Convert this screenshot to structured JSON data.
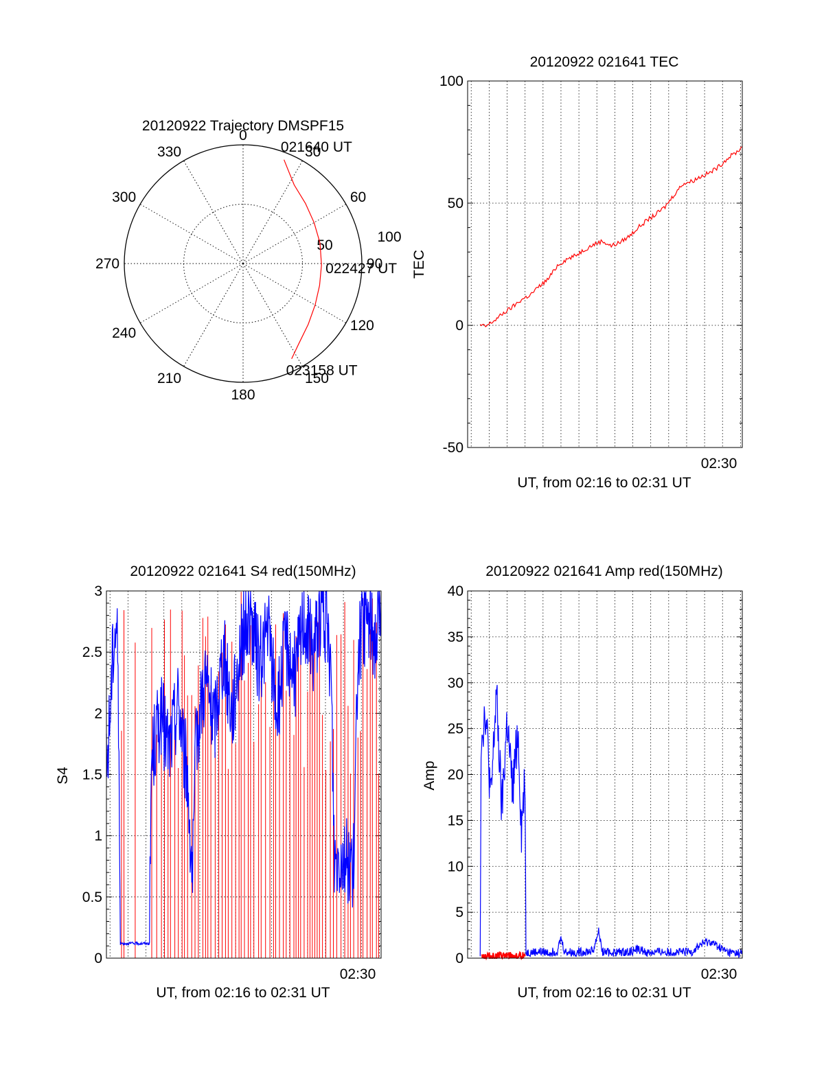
{
  "colors": {
    "red": "#ff0000",
    "blue": "#0000ff",
    "axis": "#000000",
    "grid": "#000000",
    "background": "#ffffff"
  },
  "chart_data": [
    {
      "id": "trajectory",
      "type": "polar",
      "title": "20120922 Trajectory DMSPF15",
      "azimuth_labels": [
        "0",
        "30",
        "60",
        "90",
        "120",
        "150",
        "180",
        "210",
        "240",
        "270",
        "300",
        "330"
      ],
      "radial_tick_labels": [
        "50",
        "100"
      ],
      "radial_range": [
        0,
        100
      ],
      "grid": true,
      "series": [
        {
          "color": "red",
          "points": [
            [
              21.5,
              94
            ],
            [
              26,
              87
            ],
            [
              33,
              79
            ],
            [
              46,
              73
            ],
            [
              60,
              69
            ],
            [
              75,
              67
            ],
            [
              91,
              66
            ],
            [
              106,
              67
            ],
            [
              120,
              70
            ],
            [
              133,
              75
            ],
            [
              145,
              82
            ],
            [
              153,
              90
            ]
          ]
        }
      ],
      "annotations": [
        {
          "text": "021640 UT",
          "az": 22,
          "r": 94
        },
        {
          "text": "022427 UT",
          "az": 91,
          "r": 66
        },
        {
          "text": "023158 UT",
          "az": 153,
          "r": 90
        }
      ]
    },
    {
      "id": "tec",
      "type": "line",
      "title": "20120922 021641 TEC",
      "xlabel": "UT, from 02:16 to 02:31 UT",
      "ylabel": "TEC",
      "xlim": [
        16.0,
        31.3
      ],
      "ylim": [
        -50,
        100
      ],
      "yticks": [
        "-50",
        "0",
        "50",
        "100"
      ],
      "xtick_labels": [
        {
          "x": 30.0,
          "label": "02:30"
        }
      ],
      "grid": true,
      "series": [
        {
          "color": "red",
          "points": [
            [
              16.7,
              0
            ],
            [
              17.0,
              -0.5
            ],
            [
              17.5,
              2
            ],
            [
              18.0,
              5
            ],
            [
              18.5,
              7.5
            ],
            [
              19.0,
              10.5
            ],
            [
              19.5,
              12.5
            ],
            [
              20.0,
              16
            ],
            [
              20.5,
              19
            ],
            [
              21.0,
              24.5
            ],
            [
              21.5,
              27
            ],
            [
              22.0,
              28.5
            ],
            [
              22.5,
              31
            ],
            [
              23.0,
              33
            ],
            [
              23.5,
              34.5
            ],
            [
              24.0,
              32.5
            ],
            [
              24.5,
              34
            ],
            [
              25.0,
              36.5
            ],
            [
              25.5,
              40
            ],
            [
              26.0,
              43
            ],
            [
              26.5,
              45.5
            ],
            [
              27.0,
              48.5
            ],
            [
              27.5,
              53.5
            ],
            [
              28.0,
              58
            ],
            [
              28.5,
              59
            ],
            [
              29.0,
              61
            ],
            [
              29.5,
              62.5
            ],
            [
              30.0,
              65
            ],
            [
              30.5,
              68.5
            ],
            [
              31.0,
              71
            ],
            [
              31.3,
              73
            ]
          ]
        }
      ]
    },
    {
      "id": "s4",
      "type": "line",
      "title": "20120922 021641 S4 red(150MHz)",
      "xlabel": "UT, from 02:16 to 02:31 UT",
      "ylabel": "S4",
      "xlim": [
        16.0,
        31.3
      ],
      "ylim": [
        0,
        3
      ],
      "yticks": [
        "0",
        "0.5",
        "1",
        "1.5",
        "2",
        "2.5",
        "3"
      ],
      "xtick_labels": [
        {
          "x": 30.0,
          "label": "02:30"
        }
      ],
      "grid": true,
      "series": [
        {
          "color": "blue",
          "points": [
            [
              16.0,
              1.5
            ],
            [
              16.2,
              2.0
            ],
            [
              16.4,
              2.6
            ],
            [
              16.6,
              2.8
            ],
            [
              16.8,
              0.12
            ],
            [
              17.5,
              0.12
            ],
            [
              18.2,
              0.12
            ],
            [
              18.4,
              0.12
            ],
            [
              18.5,
              1.6
            ],
            [
              19.0,
              2.0
            ],
            [
              19.5,
              1.7
            ],
            [
              20.0,
              2.1
            ],
            [
              20.5,
              1.5
            ],
            [
              20.8,
              0.65
            ],
            [
              21.0,
              1.8
            ],
            [
              21.5,
              2.3
            ],
            [
              22.0,
              1.9
            ],
            [
              22.5,
              2.5
            ],
            [
              23.0,
              2.0
            ],
            [
              23.5,
              2.6
            ],
            [
              24.0,
              2.8
            ],
            [
              24.5,
              2.4
            ],
            [
              25.0,
              2.7
            ],
            [
              25.5,
              2.0
            ],
            [
              26.0,
              2.6
            ],
            [
              26.5,
              2.3
            ],
            [
              27.0,
              2.8
            ],
            [
              27.5,
              2.5
            ],
            [
              28.0,
              2.9
            ],
            [
              28.5,
              2.4
            ],
            [
              28.7,
              0.8
            ],
            [
              29.0,
              0.85
            ],
            [
              29.5,
              0.8
            ],
            [
              29.8,
              0.75
            ],
            [
              30.0,
              2.5
            ],
            [
              30.5,
              2.8
            ],
            [
              31.0,
              2.6
            ],
            [
              31.3,
              2.9
            ]
          ]
        }
      ]
    },
    {
      "id": "amp",
      "type": "line",
      "title": "20120922 021641 Amp red(150MHz)",
      "xlabel": "UT, from 02:16 to 02:31 UT",
      "ylabel": "Amp",
      "xlim": [
        16.0,
        31.3
      ],
      "ylim": [
        0,
        40
      ],
      "yticks": [
        "0",
        "5",
        "10",
        "15",
        "20",
        "25",
        "30",
        "35",
        "40"
      ],
      "xtick_labels": [
        {
          "x": 30.0,
          "label": "02:30"
        }
      ],
      "grid": true,
      "series": [
        {
          "color": "blue",
          "points": [
            [
              16.7,
              0.5
            ],
            [
              16.75,
              24
            ],
            [
              17.0,
              27
            ],
            [
              17.3,
              17
            ],
            [
              17.6,
              29
            ],
            [
              17.9,
              16
            ],
            [
              18.2,
              26
            ],
            [
              18.5,
              18
            ],
            [
              18.8,
              25
            ],
            [
              19.0,
              14
            ],
            [
              19.2,
              20
            ],
            [
              19.25,
              0.6
            ],
            [
              20.0,
              0.7
            ],
            [
              20.5,
              0.6
            ],
            [
              21.0,
              0.8
            ],
            [
              21.2,
              2.2
            ],
            [
              21.4,
              0.7
            ],
            [
              22.0,
              0.6
            ],
            [
              22.5,
              0.7
            ],
            [
              23.0,
              0.8
            ],
            [
              23.3,
              3.0
            ],
            [
              23.5,
              0.7
            ],
            [
              24.0,
              0.6
            ],
            [
              25.0,
              0.7
            ],
            [
              25.5,
              1.0
            ],
            [
              26.0,
              0.6
            ],
            [
              27.0,
              0.7
            ],
            [
              28.0,
              0.6
            ],
            [
              28.5,
              0.7
            ],
            [
              29.0,
              1.5
            ],
            [
              29.5,
              1.8
            ],
            [
              30.0,
              1.2
            ],
            [
              30.5,
              0.6
            ],
            [
              31.3,
              0.5
            ]
          ]
        },
        {
          "color": "red",
          "points": [
            [
              16.8,
              0.2
            ],
            [
              19.2,
              0.2
            ]
          ]
        }
      ]
    }
  ]
}
